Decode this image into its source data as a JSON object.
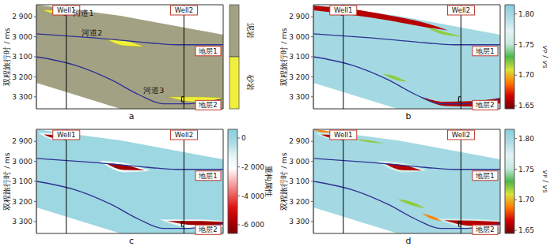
{
  "chart_data": [
    {
      "type": "facies",
      "label": "a",
      "y_label": "双程旅行时 / ms",
      "xlim": [
        0,
        100
      ],
      "ylim": [
        2840,
        3360
      ],
      "yticks": [
        {
          "value": 2900,
          "label": "2 900"
        },
        {
          "value": 3000,
          "label": "3 000"
        },
        {
          "value": 3100,
          "label": "3 100"
        },
        {
          "value": 3200,
          "label": "3 200"
        },
        {
          "value": 3300,
          "label": "3 300"
        }
      ],
      "tick_labels": "y",
      "lithology": [
        {
          "name": "泥岩",
          "color": "#a3a183"
        },
        {
          "name": "砂岩",
          "color": "#f0f03c"
        }
      ],
      "body": {
        "lithology": "泥岩",
        "x": [
          0,
          45,
          100
        ],
        "top": [
          2840,
          2895,
          2990
        ],
        "bottom": [
          3230,
          3360,
          3360
        ]
      },
      "channels": [
        {
          "name": "河道1",
          "lithology": "砂岩",
          "x": [
            3,
            10,
            18
          ],
          "top": [
            2866,
            2868,
            2880
          ],
          "bottom": [
            2866,
            2884,
            2880
          ]
        },
        {
          "name": "河道2",
          "lithology": "砂岩",
          "x": [
            37,
            47,
            58
          ],
          "top": [
            3010,
            3018,
            3050
          ],
          "bottom": [
            3010,
            3045,
            3050
          ]
        },
        {
          "name": "河道3",
          "lithology": "砂岩",
          "x": [
            70,
            85,
            100
          ],
          "top": [
            3300,
            3300,
            3305
          ],
          "bottom": [
            3300,
            3325,
            3320
          ]
        }
      ],
      "layers": [
        {
          "name": "地层1",
          "color": "#2e3192",
          "x": [
            0,
            30,
            60,
            75,
            100
          ],
          "values": [
            2985,
            3005,
            3030,
            3040,
            3040
          ]
        },
        {
          "name": "地层2",
          "color": "#2e3192",
          "x": [
            0,
            20,
            40,
            55,
            68,
            80,
            100
          ],
          "values": [
            3100,
            3140,
            3215,
            3290,
            3335,
            3335,
            3310
          ]
        }
      ],
      "wells": [
        {
          "name": "Well1",
          "x": 16,
          "interval": [
            2872,
            2892
          ]
        },
        {
          "name": "Well2",
          "x": 79,
          "interval": [
            3300,
            3325
          ]
        }
      ]
    },
    {
      "type": "attribute",
      "label": "b",
      "y_label": "双程旅行时 / ms",
      "xlim": [
        0,
        100
      ],
      "ylim": [
        2840,
        3360
      ],
      "yticks": [
        {
          "value": 2900,
          "label": "2 900"
        },
        {
          "value": 3000,
          "label": "3 000"
        },
        {
          "value": 3100,
          "label": "3 100"
        },
        {
          "value": 3200,
          "label": "3 200"
        },
        {
          "value": 3300,
          "label": "3 300"
        }
      ],
      "tick_labels": "y",
      "colorbar": {
        "label": "vP / vS",
        "range": [
          1.645,
          1.815
        ],
        "ticks": [
          1.65,
          {
            "value": 1.7,
            "label": "1.70"
          },
          1.75,
          {
            "value": 1.8,
            "label": "1.80"
          }
        ],
        "colors": [
          "#6e0000",
          "#d40000",
          "#ff7a00",
          "#d9e33a",
          "#4cb848",
          "#c6e9e0",
          "#e2f3f5",
          "#b0dde6",
          "#86cedc"
        ]
      },
      "body": {
        "value": 1.8,
        "x": [
          0,
          45,
          100
        ],
        "top": [
          2840,
          2895,
          2990
        ],
        "bottom": [
          3230,
          3360,
          3360
        ]
      },
      "bodies": [
        {
          "value": 1.72,
          "x": [
            60,
            70,
            80
          ],
          "top": [
            2950,
            2975,
            3000
          ],
          "bottom": [
            2950,
            2990,
            3000
          ]
        },
        {
          "value": 1.66,
          "x": [
            0,
            20,
            40,
            60,
            72
          ],
          "top": [
            2845,
            2862,
            2892,
            2932,
            2968
          ],
          "bottom": [
            2868,
            2890,
            2918,
            2952,
            2968
          ]
        },
        {
          "value": 1.72,
          "x": [
            37,
            43,
            50
          ],
          "top": [
            3185,
            3195,
            3225
          ],
          "bottom": [
            3185,
            3212,
            3225
          ]
        },
        {
          "value": 1.66,
          "x": [
            58,
            70,
            85,
            100
          ],
          "top": [
            3300,
            3325,
            3322,
            3305
          ],
          "bottom": [
            3300,
            3345,
            3348,
            3332
          ]
        }
      ],
      "layers": [
        {
          "name": "地层1",
          "color": "#2e3192",
          "x": [
            0,
            30,
            60,
            75,
            100
          ],
          "values": [
            2985,
            3005,
            3030,
            3040,
            3040
          ]
        },
        {
          "name": "地层2",
          "color": "#2e3192",
          "x": [
            0,
            20,
            40,
            55,
            68,
            80,
            100
          ],
          "values": [
            3100,
            3140,
            3215,
            3290,
            3335,
            3335,
            3310
          ]
        }
      ],
      "wells": [
        {
          "name": "Well1",
          "x": 16,
          "interval": [
            2872,
            2892
          ]
        },
        {
          "name": "Well2",
          "x": 79,
          "interval": [
            3300,
            3325
          ]
        }
      ]
    },
    {
      "type": "attribute",
      "label": "c",
      "y_label": "双程旅行时 / ms",
      "xlim": [
        0,
        100
      ],
      "ylim": [
        2840,
        3360
      ],
      "yticks": [
        {
          "value": 2900,
          "label": "2 900"
        },
        {
          "value": 3000,
          "label": "3 000"
        },
        {
          "value": 3100,
          "label": "3 100"
        },
        {
          "value": 3200,
          "label": "3 200"
        },
        {
          "value": 3300,
          "label": "3 300"
        }
      ],
      "tick_labels": "y",
      "colorbar": {
        "label": "重构属性",
        "range": [
          -6600,
          600
        ],
        "ticks": [
          {
            "value": -6000,
            "label": "-6 000"
          },
          {
            "value": -4000,
            "label": "-4 000"
          },
          {
            "value": -2000,
            "label": "-2 000"
          },
          0
        ],
        "colors": [
          "#7a0000",
          "#b30000",
          "#e01010",
          "#f06060",
          "#f8b0b0",
          "#ffffff",
          "#e4f4f6",
          "#a8dbe4",
          "#86cedc"
        ]
      },
      "body": {
        "value": 0,
        "x": [
          0,
          45,
          100
        ],
        "top": [
          2840,
          2895,
          2990
        ],
        "bottom": [
          3230,
          3360,
          3360
        ]
      },
      "bodies": [
        {
          "value": -1500,
          "x": [
            1,
            10,
            21
          ],
          "top": [
            2858,
            2860,
            2876
          ],
          "bottom": [
            2858,
            2893,
            2876
          ]
        },
        {
          "value": -6000,
          "x": [
            4,
            10,
            18
          ],
          "top": [
            2866,
            2869,
            2880
          ],
          "bottom": [
            2866,
            2884,
            2880
          ]
        },
        {
          "value": -1500,
          "x": [
            34,
            47,
            61
          ],
          "top": [
            2998,
            3008,
            3047
          ],
          "bottom": [
            2998,
            3055,
            3047
          ]
        },
        {
          "value": -6000,
          "x": [
            37,
            47,
            58
          ],
          "top": [
            3008,
            3018,
            3045
          ],
          "bottom": [
            3008,
            3043,
            3045
          ]
        },
        {
          "value": -1500,
          "x": [
            66,
            85,
            100
          ],
          "top": [
            3290,
            3290,
            3298
          ],
          "bottom": [
            3290,
            3335,
            3328
          ]
        },
        {
          "value": -6000,
          "x": [
            70,
            85,
            100
          ],
          "top": [
            3298,
            3298,
            3302
          ],
          "bottom": [
            3298,
            3318,
            3316
          ]
        }
      ],
      "layers": [
        {
          "name": "地层1",
          "color": "#2e3192",
          "x": [
            0,
            30,
            60,
            75,
            100
          ],
          "values": [
            2985,
            3005,
            3030,
            3040,
            3040
          ]
        },
        {
          "name": "地层2",
          "color": "#2e3192",
          "x": [
            0,
            20,
            40,
            55,
            68,
            80,
            100
          ],
          "values": [
            3100,
            3140,
            3215,
            3290,
            3335,
            3335,
            3310
          ]
        }
      ],
      "wells": [
        {
          "name": "Well1",
          "x": 16,
          "interval": [
            2872,
            2892
          ]
        },
        {
          "name": "Well2",
          "x": 79,
          "interval": [
            3300,
            3325
          ]
        }
      ]
    },
    {
      "type": "attribute",
      "label": "d",
      "y_label": "双程旅行时 / ms",
      "xlim": [
        0,
        100
      ],
      "ylim": [
        2840,
        3360
      ],
      "yticks": [
        {
          "value": 2900,
          "label": "2 900"
        },
        {
          "value": 3000,
          "label": "3 000"
        },
        {
          "value": 3100,
          "label": "3 100"
        },
        {
          "value": 3200,
          "label": "3 200"
        },
        {
          "value": 3300,
          "label": "3 300"
        }
      ],
      "tick_labels": "y",
      "colorbar": {
        "label": "vP / vS",
        "range": [
          1.645,
          1.815
        ],
        "ticks": [
          1.65,
          {
            "value": 1.7,
            "label": "1.70"
          },
          1.75,
          {
            "value": 1.8,
            "label": "1.80"
          }
        ],
        "colors": [
          "#6e0000",
          "#d40000",
          "#ff7a00",
          "#d9e33a",
          "#4cb848",
          "#c6e9e0",
          "#e2f3f5",
          "#b0dde6",
          "#86cedc"
        ]
      },
      "body": {
        "value": 1.8,
        "x": [
          0,
          45,
          100
        ],
        "top": [
          2840,
          2895,
          2990
        ],
        "bottom": [
          3230,
          3360,
          3360
        ]
      },
      "bodies": [
        {
          "value": 1.69,
          "x": [
            0,
            6,
            12
          ],
          "top": [
            2842,
            2846,
            2856
          ],
          "bottom": [
            2842,
            2856,
            2856
          ]
        },
        {
          "value": 1.72,
          "x": [
            22,
            30,
            38
          ],
          "top": [
            2888,
            2895,
            2910
          ],
          "bottom": [
            2888,
            2905,
            2910
          ]
        },
        {
          "value": 1.76,
          "x": [
            1,
            11,
            21
          ],
          "top": [
            2858,
            2860,
            2876
          ],
          "bottom": [
            2858,
            2893,
            2876
          ]
        },
        {
          "value": 1.66,
          "x": [
            4,
            11,
            18
          ],
          "top": [
            2866,
            2869,
            2880
          ],
          "bottom": [
            2866,
            2885,
            2880
          ]
        },
        {
          "value": 1.76,
          "x": [
            34,
            48,
            61
          ],
          "top": [
            2998,
            3008,
            3047
          ],
          "bottom": [
            2998,
            3055,
            3047
          ]
        },
        {
          "value": 1.66,
          "x": [
            38,
            48,
            58
          ],
          "top": [
            3010,
            3018,
            3046
          ],
          "bottom": [
            3010,
            3044,
            3046
          ]
        },
        {
          "value": 1.72,
          "x": [
            45,
            52,
            60
          ],
          "top": [
            3190,
            3200,
            3235
          ],
          "bottom": [
            3190,
            3218,
            3235
          ]
        },
        {
          "value": 1.69,
          "x": [
            58,
            64,
            70
          ],
          "top": [
            3260,
            3275,
            3298
          ],
          "bottom": [
            3260,
            3290,
            3298
          ]
        },
        {
          "value": 1.76,
          "x": [
            66,
            85,
            100
          ],
          "top": [
            3286,
            3288,
            3296
          ],
          "bottom": [
            3286,
            3334,
            3328
          ]
        },
        {
          "value": 1.66,
          "x": [
            70,
            85,
            100
          ],
          "top": [
            3294,
            3296,
            3302
          ],
          "bottom": [
            3294,
            3322,
            3318
          ]
        }
      ],
      "layers": [
        {
          "name": "地层1",
          "color": "#2e3192",
          "x": [
            0,
            30,
            60,
            75,
            100
          ],
          "values": [
            2985,
            3005,
            3030,
            3040,
            3040
          ]
        },
        {
          "name": "地层2",
          "color": "#2e3192",
          "x": [
            0,
            20,
            40,
            55,
            68,
            80,
            100
          ],
          "values": [
            3100,
            3140,
            3215,
            3290,
            3335,
            3335,
            3310
          ]
        }
      ],
      "wells": [
        {
          "name": "Well1",
          "x": 16,
          "interval": [
            2872,
            2892
          ]
        },
        {
          "name": "Well2",
          "x": 79,
          "interval": [
            3300,
            3325
          ]
        }
      ]
    }
  ]
}
